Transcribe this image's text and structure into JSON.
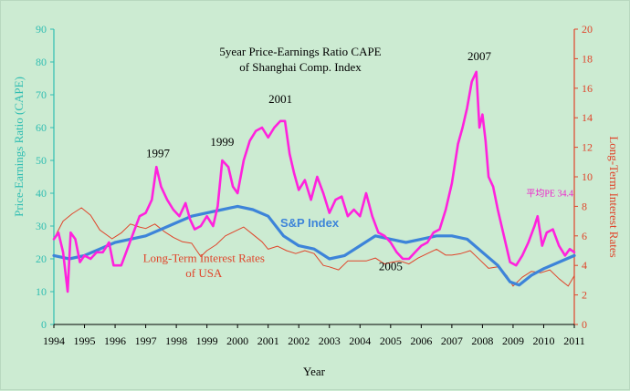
{
  "chart_data": {
    "type": "line",
    "title_lines": [
      "5year Price-Earnings Ratio CAPE",
      "of Shanghai Comp. Index"
    ],
    "xlabel": "Year",
    "ylabel_left": "Price-Earnings Ratio (CAPE)",
    "ylabel_right": "Long-Term Interest Rates",
    "x_ticks": [
      "1994",
      "1995",
      "1996",
      "1997",
      "1998",
      "1999",
      "2000",
      "2001",
      "2002",
      "2003",
      "2004",
      "2005",
      "2006",
      "2007",
      "2008",
      "2009",
      "2010",
      "2011"
    ],
    "xlim": [
      1994,
      2011
    ],
    "ylim_left": [
      0,
      90
    ],
    "ylim_right": [
      0,
      20
    ],
    "y_left_ticks": [
      "0",
      "10",
      "20",
      "30",
      "40",
      "50",
      "60",
      "70",
      "80",
      "90"
    ],
    "y_right_ticks": [
      "0",
      "2",
      "4",
      "6",
      "8",
      "10",
      "12",
      "14",
      "16",
      "18",
      "20"
    ],
    "grid": false,
    "annotations": [
      {
        "text": "1997",
        "x": 1997.4,
        "y": 51
      },
      {
        "text": "1999",
        "x": 1999.5,
        "y": 54.5
      },
      {
        "text": "2001",
        "x": 2001.4,
        "y": 67.5
      },
      {
        "text": "2007",
        "x": 2007.9,
        "y": 80.5
      },
      {
        "text": "2005",
        "x": 2005.0,
        "y": 16.5
      },
      {
        "text": "Long-Term Interest Rates",
        "x": 1998.9,
        "y": 19,
        "color": "#e0442a"
      },
      {
        "text": "of USA",
        "x": 1998.9,
        "y": 14.5,
        "color": "#e0442a"
      },
      {
        "text": "平均PE 34.4",
        "x": 2010.2,
        "y": 39,
        "color": "#ee22cc"
      }
    ],
    "series": [
      {
        "name": "",
        "axis": "left",
        "color": "#ff22dd",
        "points": [
          [
            1994.0,
            26
          ],
          [
            1994.15,
            28
          ],
          [
            1994.3,
            22
          ],
          [
            1994.45,
            10
          ],
          [
            1994.55,
            28
          ],
          [
            1994.7,
            26
          ],
          [
            1994.85,
            19
          ],
          [
            1995.0,
            21
          ],
          [
            1995.2,
            20
          ],
          [
            1995.4,
            22
          ],
          [
            1995.6,
            22
          ],
          [
            1995.8,
            25
          ],
          [
            1995.95,
            18
          ],
          [
            1996.2,
            18
          ],
          [
            1996.4,
            23
          ],
          [
            1996.6,
            28
          ],
          [
            1996.8,
            33
          ],
          [
            1997.0,
            34
          ],
          [
            1997.2,
            38
          ],
          [
            1997.35,
            48
          ],
          [
            1997.5,
            42
          ],
          [
            1997.7,
            38
          ],
          [
            1997.9,
            35
          ],
          [
            1998.1,
            33
          ],
          [
            1998.3,
            37
          ],
          [
            1998.45,
            32
          ],
          [
            1998.6,
            29
          ],
          [
            1998.8,
            30
          ],
          [
            1999.0,
            33
          ],
          [
            1999.2,
            30
          ],
          [
            1999.35,
            36
          ],
          [
            1999.5,
            50
          ],
          [
            1999.7,
            48
          ],
          [
            1999.85,
            42
          ],
          [
            2000.0,
            40
          ],
          [
            2000.2,
            50
          ],
          [
            2000.4,
            56
          ],
          [
            2000.6,
            59
          ],
          [
            2000.8,
            60
          ],
          [
            2001.0,
            57
          ],
          [
            2001.2,
            60
          ],
          [
            2001.4,
            62
          ],
          [
            2001.55,
            62
          ],
          [
            2001.7,
            52
          ],
          [
            2001.85,
            46
          ],
          [
            2002.0,
            41
          ],
          [
            2002.2,
            44
          ],
          [
            2002.4,
            38
          ],
          [
            2002.6,
            45
          ],
          [
            2002.8,
            40
          ],
          [
            2003.0,
            34
          ],
          [
            2003.2,
            38
          ],
          [
            2003.4,
            39
          ],
          [
            2003.6,
            33
          ],
          [
            2003.8,
            35
          ],
          [
            2004.0,
            33
          ],
          [
            2004.2,
            40
          ],
          [
            2004.4,
            33
          ],
          [
            2004.6,
            28
          ],
          [
            2004.8,
            27
          ],
          [
            2005.0,
            25
          ],
          [
            2005.2,
            22
          ],
          [
            2005.4,
            20
          ],
          [
            2005.6,
            20
          ],
          [
            2005.8,
            22
          ],
          [
            2006.0,
            24
          ],
          [
            2006.2,
            25
          ],
          [
            2006.4,
            28
          ],
          [
            2006.6,
            29
          ],
          [
            2006.8,
            35
          ],
          [
            2007.0,
            43
          ],
          [
            2007.2,
            55
          ],
          [
            2007.35,
            60
          ],
          [
            2007.5,
            66
          ],
          [
            2007.65,
            74
          ],
          [
            2007.8,
            77
          ],
          [
            2007.9,
            60
          ],
          [
            2008.0,
            64
          ],
          [
            2008.1,
            56
          ],
          [
            2008.2,
            45
          ],
          [
            2008.35,
            42
          ],
          [
            2008.5,
            35
          ],
          [
            2008.7,
            27
          ],
          [
            2008.9,
            19
          ],
          [
            2009.1,
            18
          ],
          [
            2009.3,
            21
          ],
          [
            2009.5,
            25
          ],
          [
            2009.7,
            30
          ],
          [
            2009.8,
            33
          ],
          [
            2009.95,
            24
          ],
          [
            2010.1,
            28
          ],
          [
            2010.3,
            29
          ],
          [
            2010.5,
            24
          ],
          [
            2010.7,
            21
          ],
          [
            2010.85,
            23
          ],
          [
            2011.0,
            22
          ]
        ]
      },
      {
        "name": "S&P Index",
        "axis": "left",
        "color": "#3d84d9",
        "points": [
          [
            1994.0,
            21
          ],
          [
            1994.5,
            20
          ],
          [
            1995.0,
            21
          ],
          [
            1995.5,
            23
          ],
          [
            1996.0,
            25
          ],
          [
            1996.5,
            26
          ],
          [
            1997.0,
            27
          ],
          [
            1997.5,
            29
          ],
          [
            1998.0,
            31
          ],
          [
            1998.5,
            33
          ],
          [
            1999.0,
            34
          ],
          [
            1999.5,
            35
          ],
          [
            2000.0,
            36
          ],
          [
            2000.5,
            35
          ],
          [
            2001.0,
            33
          ],
          [
            2001.5,
            27
          ],
          [
            2002.0,
            24
          ],
          [
            2002.5,
            23
          ],
          [
            2003.0,
            20
          ],
          [
            2003.5,
            21
          ],
          [
            2004.0,
            24
          ],
          [
            2004.5,
            27
          ],
          [
            2005.0,
            26
          ],
          [
            2005.5,
            25
          ],
          [
            2006.0,
            26
          ],
          [
            2006.5,
            27
          ],
          [
            2007.0,
            27
          ],
          [
            2007.5,
            26
          ],
          [
            2008.0,
            22
          ],
          [
            2008.5,
            18
          ],
          [
            2008.9,
            13
          ],
          [
            2009.2,
            12
          ],
          [
            2009.6,
            15
          ],
          [
            2010.0,
            17
          ],
          [
            2010.5,
            19
          ],
          [
            2011.0,
            21
          ]
        ]
      },
      {
        "name": "Long-Term Interest Rates of USA",
        "axis": "right",
        "color": "#e0442a",
        "points": [
          [
            1994.0,
            5.8
          ],
          [
            1994.3,
            7.0
          ],
          [
            1994.6,
            7.5
          ],
          [
            1994.9,
            7.9
          ],
          [
            1995.2,
            7.4
          ],
          [
            1995.5,
            6.4
          ],
          [
            1995.9,
            5.8
          ],
          [
            1996.2,
            6.2
          ],
          [
            1996.5,
            6.8
          ],
          [
            1996.8,
            6.6
          ],
          [
            1997.0,
            6.5
          ],
          [
            1997.3,
            6.8
          ],
          [
            1997.6,
            6.3
          ],
          [
            1997.9,
            5.9
          ],
          [
            1998.2,
            5.6
          ],
          [
            1998.5,
            5.5
          ],
          [
            1998.8,
            4.6
          ],
          [
            1999.0,
            5.0
          ],
          [
            1999.3,
            5.4
          ],
          [
            1999.6,
            6.0
          ],
          [
            1999.9,
            6.3
          ],
          [
            2000.2,
            6.6
          ],
          [
            2000.5,
            6.1
          ],
          [
            2000.8,
            5.6
          ],
          [
            2001.0,
            5.1
          ],
          [
            2001.3,
            5.3
          ],
          [
            2001.6,
            5.0
          ],
          [
            2001.9,
            4.8
          ],
          [
            2002.2,
            5.0
          ],
          [
            2002.5,
            4.8
          ],
          [
            2002.8,
            4.0
          ],
          [
            2003.0,
            3.9
          ],
          [
            2003.3,
            3.7
          ],
          [
            2003.6,
            4.3
          ],
          [
            2003.9,
            4.3
          ],
          [
            2004.2,
            4.3
          ],
          [
            2004.5,
            4.5
          ],
          [
            2004.8,
            4.1
          ],
          [
            2005.0,
            4.2
          ],
          [
            2005.3,
            4.3
          ],
          [
            2005.6,
            4.1
          ],
          [
            2005.9,
            4.5
          ],
          [
            2006.2,
            4.8
          ],
          [
            2006.5,
            5.1
          ],
          [
            2006.8,
            4.7
          ],
          [
            2007.0,
            4.7
          ],
          [
            2007.3,
            4.8
          ],
          [
            2007.6,
            5.0
          ],
          [
            2007.9,
            4.4
          ],
          [
            2008.2,
            3.8
          ],
          [
            2008.5,
            3.9
          ],
          [
            2008.8,
            3.3
          ],
          [
            2009.0,
            2.6
          ],
          [
            2009.3,
            3.2
          ],
          [
            2009.6,
            3.6
          ],
          [
            2009.9,
            3.5
          ],
          [
            2010.2,
            3.7
          ],
          [
            2010.5,
            3.1
          ],
          [
            2010.8,
            2.6
          ],
          [
            2011.0,
            3.3
          ]
        ]
      }
    ]
  }
}
